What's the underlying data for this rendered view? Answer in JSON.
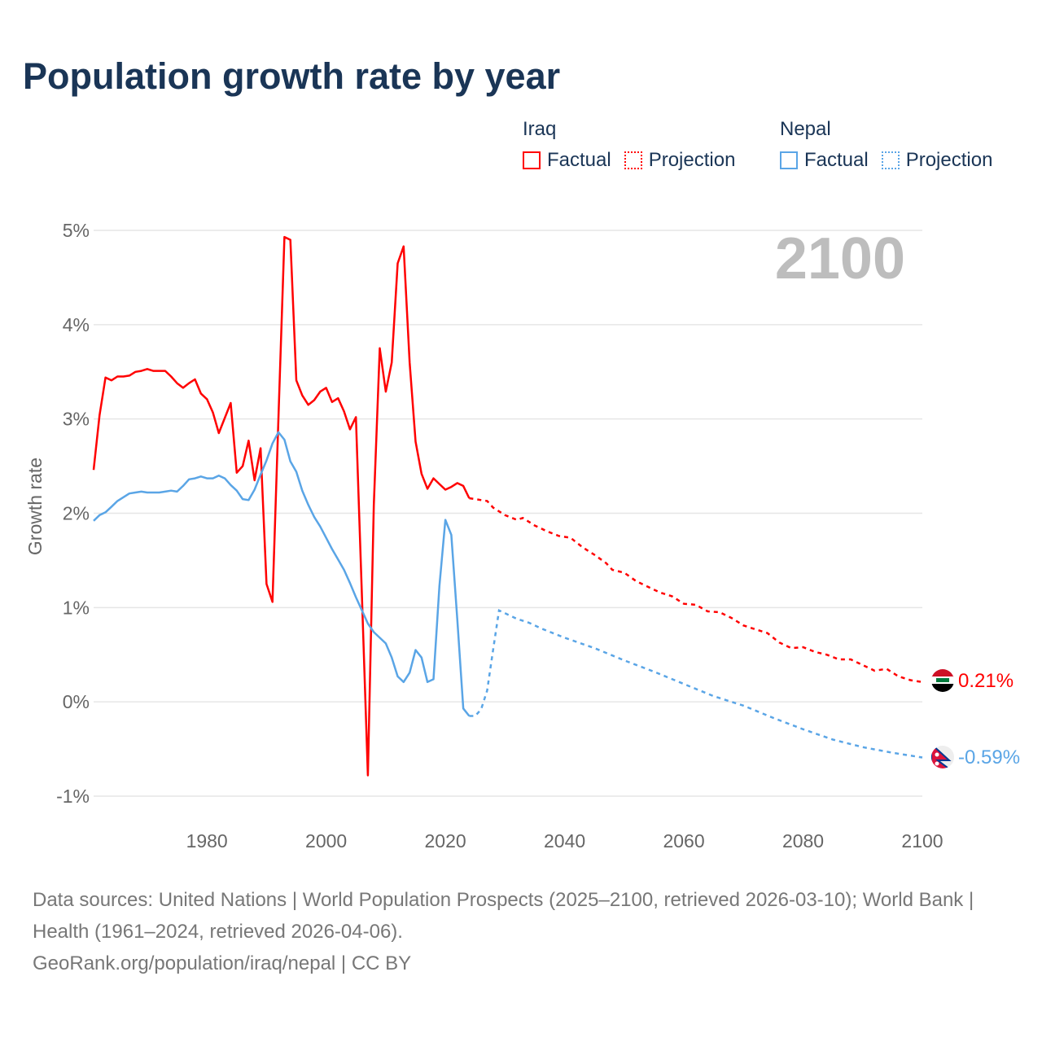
{
  "title": "Population growth rate by year",
  "legend": [
    {
      "country": "Iraq",
      "factual": "Factual",
      "projection": "Projection",
      "color": "#ff0000"
    },
    {
      "country": "Nepal",
      "factual": "Factual",
      "projection": "Projection",
      "color": "#5aa5e6"
    }
  ],
  "year_label": "2100",
  "footer": {
    "sources": "Data sources: United Nations | World Population Prospects (2025–2100, retrieved 2026-03-10); World Bank | Health (1961–2024, retrieved 2026-04-06).",
    "credit": "GeoRank.org/population/iraq/nepal | CC BY"
  },
  "chart_data": {
    "type": "line",
    "title": "Population growth rate by year",
    "xlabel": "",
    "ylabel": "Growth rate",
    "xlim": [
      1961,
      2100
    ],
    "ylim": [
      -1,
      5
    ],
    "x_ticks": [
      "1980",
      "2000",
      "2020",
      "2040",
      "2060",
      "2080",
      "2100"
    ],
    "y_ticks": [
      "-1%",
      "0%",
      "1%",
      "2%",
      "3%",
      "4%",
      "5%"
    ],
    "grid": true,
    "legend_position": "top-right",
    "series": [
      {
        "name": "Iraq",
        "color": "#ff0000",
        "end_label": "0.21%",
        "factual": [
          [
            1961,
            2.46
          ],
          [
            1962,
            3.04
          ],
          [
            1963,
            3.44
          ],
          [
            1964,
            3.41
          ],
          [
            1965,
            3.45
          ],
          [
            1966,
            3.45
          ],
          [
            1967,
            3.46
          ],
          [
            1968,
            3.5
          ],
          [
            1969,
            3.51
          ],
          [
            1970,
            3.53
          ],
          [
            1971,
            3.51
          ],
          [
            1972,
            3.51
          ],
          [
            1973,
            3.51
          ],
          [
            1974,
            3.45
          ],
          [
            1975,
            3.38
          ],
          [
            1976,
            3.33
          ],
          [
            1977,
            3.38
          ],
          [
            1978,
            3.42
          ],
          [
            1979,
            3.27
          ],
          [
            1980,
            3.21
          ],
          [
            1981,
            3.07
          ],
          [
            1982,
            2.85
          ],
          [
            1983,
            3.01
          ],
          [
            1984,
            3.17
          ],
          [
            1985,
            2.43
          ],
          [
            1986,
            2.5
          ],
          [
            1987,
            2.77
          ],
          [
            1988,
            2.35
          ],
          [
            1989,
            2.69
          ],
          [
            1990,
            1.25
          ],
          [
            1991,
            1.06
          ],
          [
            1992,
            3.0
          ],
          [
            1993,
            4.93
          ],
          [
            1994,
            4.9
          ],
          [
            1995,
            3.41
          ],
          [
            1996,
            3.25
          ],
          [
            1997,
            3.15
          ],
          [
            1998,
            3.2
          ],
          [
            1999,
            3.29
          ],
          [
            2000,
            3.33
          ],
          [
            2001,
            3.18
          ],
          [
            2002,
            3.22
          ],
          [
            2003,
            3.08
          ],
          [
            2004,
            2.89
          ],
          [
            2005,
            3.02
          ],
          [
            2006,
            1.12
          ],
          [
            2007,
            -0.78
          ],
          [
            2008,
            2.09
          ],
          [
            2009,
            3.75
          ],
          [
            2010,
            3.29
          ],
          [
            2011,
            3.6
          ],
          [
            2012,
            4.65
          ],
          [
            2013,
            4.83
          ],
          [
            2014,
            3.6
          ],
          [
            2015,
            2.76
          ],
          [
            2016,
            2.42
          ],
          [
            2017,
            2.26
          ],
          [
            2018,
            2.37
          ],
          [
            2019,
            2.31
          ],
          [
            2020,
            2.25
          ],
          [
            2021,
            2.28
          ],
          [
            2022,
            2.32
          ],
          [
            2023,
            2.29
          ],
          [
            2024,
            2.16
          ]
        ],
        "projection": [
          [
            2024,
            2.16
          ],
          [
            2025,
            2.15
          ],
          [
            2026,
            2.14
          ],
          [
            2027,
            2.13
          ],
          [
            2028,
            2.06
          ],
          [
            2030,
            1.98
          ],
          [
            2032,
            1.93
          ],
          [
            2033,
            1.95
          ],
          [
            2035,
            1.87
          ],
          [
            2037,
            1.81
          ],
          [
            2039,
            1.76
          ],
          [
            2041,
            1.74
          ],
          [
            2043,
            1.64
          ],
          [
            2045,
            1.56
          ],
          [
            2047,
            1.47
          ],
          [
            2048,
            1.4
          ],
          [
            2050,
            1.37
          ],
          [
            2052,
            1.28
          ],
          [
            2054,
            1.22
          ],
          [
            2056,
            1.16
          ],
          [
            2058,
            1.12
          ],
          [
            2060,
            1.04
          ],
          [
            2062,
            1.03
          ],
          [
            2064,
            0.96
          ],
          [
            2066,
            0.95
          ],
          [
            2068,
            0.89
          ],
          [
            2070,
            0.81
          ],
          [
            2072,
            0.77
          ],
          [
            2074,
            0.73
          ],
          [
            2076,
            0.63
          ],
          [
            2078,
            0.57
          ],
          [
            2080,
            0.58
          ],
          [
            2082,
            0.53
          ],
          [
            2084,
            0.5
          ],
          [
            2086,
            0.45
          ],
          [
            2088,
            0.45
          ],
          [
            2090,
            0.39
          ],
          [
            2092,
            0.33
          ],
          [
            2094,
            0.35
          ],
          [
            2096,
            0.27
          ],
          [
            2098,
            0.23
          ],
          [
            2100,
            0.21
          ]
        ]
      },
      {
        "name": "Nepal",
        "color": "#5aa5e6",
        "end_label": "-0.59%",
        "factual": [
          [
            1961,
            1.92
          ],
          [
            1962,
            1.98
          ],
          [
            1963,
            2.01
          ],
          [
            1964,
            2.07
          ],
          [
            1965,
            2.13
          ],
          [
            1966,
            2.17
          ],
          [
            1967,
            2.21
          ],
          [
            1968,
            2.22
          ],
          [
            1969,
            2.23
          ],
          [
            1970,
            2.22
          ],
          [
            1971,
            2.22
          ],
          [
            1972,
            2.22
          ],
          [
            1973,
            2.23
          ],
          [
            1974,
            2.24
          ],
          [
            1975,
            2.23
          ],
          [
            1976,
            2.29
          ],
          [
            1977,
            2.36
          ],
          [
            1978,
            2.37
          ],
          [
            1979,
            2.39
          ],
          [
            1980,
            2.37
          ],
          [
            1981,
            2.37
          ],
          [
            1982,
            2.4
          ],
          [
            1983,
            2.37
          ],
          [
            1984,
            2.3
          ],
          [
            1985,
            2.24
          ],
          [
            1986,
            2.15
          ],
          [
            1987,
            2.14
          ],
          [
            1988,
            2.25
          ],
          [
            1989,
            2.41
          ],
          [
            1990,
            2.56
          ],
          [
            1991,
            2.74
          ],
          [
            1992,
            2.86
          ],
          [
            1993,
            2.78
          ],
          [
            1994,
            2.55
          ],
          [
            1995,
            2.44
          ],
          [
            1996,
            2.24
          ],
          [
            1997,
            2.09
          ],
          [
            1998,
            1.96
          ],
          [
            1999,
            1.86
          ],
          [
            2000,
            1.74
          ],
          [
            2001,
            1.62
          ],
          [
            2002,
            1.51
          ],
          [
            2003,
            1.4
          ],
          [
            2004,
            1.26
          ],
          [
            2005,
            1.11
          ],
          [
            2006,
            0.97
          ],
          [
            2007,
            0.83
          ],
          [
            2008,
            0.74
          ],
          [
            2009,
            0.68
          ],
          [
            2010,
            0.62
          ],
          [
            2011,
            0.47
          ],
          [
            2012,
            0.27
          ],
          [
            2013,
            0.21
          ],
          [
            2014,
            0.31
          ],
          [
            2015,
            0.55
          ],
          [
            2016,
            0.47
          ],
          [
            2017,
            0.21
          ],
          [
            2018,
            0.24
          ],
          [
            2019,
            1.23
          ],
          [
            2020,
            1.93
          ],
          [
            2021,
            1.77
          ],
          [
            2022,
            0.88
          ],
          [
            2023,
            -0.07
          ],
          [
            2024,
            -0.15
          ]
        ],
        "projection": [
          [
            2024,
            -0.15
          ],
          [
            2025,
            -0.15
          ],
          [
            2026,
            -0.08
          ],
          [
            2027,
            0.12
          ],
          [
            2028,
            0.55
          ],
          [
            2029,
            0.97
          ],
          [
            2030,
            0.94
          ],
          [
            2032,
            0.88
          ],
          [
            2034,
            0.84
          ],
          [
            2036,
            0.78
          ],
          [
            2040,
            0.68
          ],
          [
            2045,
            0.57
          ],
          [
            2050,
            0.44
          ],
          [
            2055,
            0.32
          ],
          [
            2060,
            0.19
          ],
          [
            2065,
            0.06
          ],
          [
            2070,
            -0.04
          ],
          [
            2075,
            -0.17
          ],
          [
            2080,
            -0.29
          ],
          [
            2085,
            -0.4
          ],
          [
            2090,
            -0.48
          ],
          [
            2095,
            -0.54
          ],
          [
            2100,
            -0.59
          ]
        ]
      }
    ]
  }
}
